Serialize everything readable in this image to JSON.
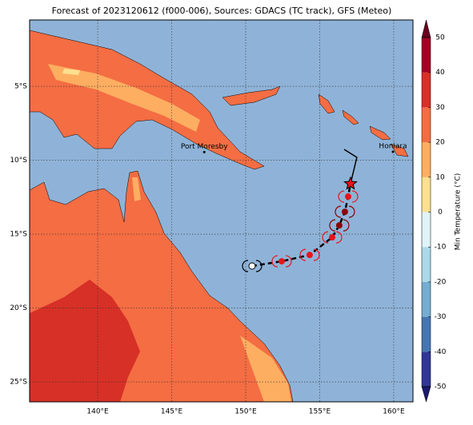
{
  "title": "Forecast of 2023120612 (f000-006), Sources: GDACS (TC track), GFS (Meteo)",
  "map": {
    "xlim": [
      135.4,
      161.3
    ],
    "ylim": [
      -26.35,
      -0.51
    ],
    "xticks": [
      {
        "value": 140,
        "label": "140°E"
      },
      {
        "value": 145,
        "label": "145°E"
      },
      {
        "value": 150,
        "label": "150°E"
      },
      {
        "value": 155,
        "label": "155°E"
      },
      {
        "value": 160,
        "label": "160°E"
      }
    ],
    "yticks": [
      {
        "value": -5,
        "label": "5°S"
      },
      {
        "value": -10,
        "label": "10°S"
      },
      {
        "value": -15,
        "label": "15°S"
      },
      {
        "value": -20,
        "label": "20°S"
      },
      {
        "value": -25,
        "label": "25°S"
      }
    ],
    "grid": true,
    "places": [
      {
        "name": "Port Moresby",
        "lon": 147.2,
        "lat": -9.45
      },
      {
        "name": "Honiara",
        "lon": 159.95,
        "lat": -9.43
      }
    ],
    "past_track": {
      "lon": [
        150.43,
        152.43,
        154.32,
        155.84,
        156.32,
        156.7,
        156.92,
        157.08
      ],
      "lat": [
        -17.16,
        -16.84,
        -16.41,
        -15.22,
        -14.41,
        -13.49,
        -12.46,
        -11.59
      ],
      "colors": [
        "#ffffff",
        "#e8141c",
        "#e8141c",
        "#e8141c",
        "#8b0000",
        "#8b0000",
        "#e8141c",
        "#e8141c"
      ]
    },
    "forecast_track": {
      "lon": [
        157.08,
        157.51,
        156.65
      ],
      "lat": [
        -11.59,
        -9.81,
        -9.27
      ]
    }
  },
  "colorbar": {
    "label": "Min Temperature (°C)",
    "ticks": [
      -50,
      -40,
      -30,
      -20,
      -10,
      0,
      10,
      20,
      30,
      40,
      50
    ],
    "colors": [
      "#313695",
      "#4575b4",
      "#74add1",
      "#abd9e9",
      "#e0f3f8",
      "#fee090",
      "#fdae61",
      "#f46d43",
      "#d73027",
      "#a50026"
    ],
    "under": "#1a1a6e",
    "over": "#67001f"
  }
}
